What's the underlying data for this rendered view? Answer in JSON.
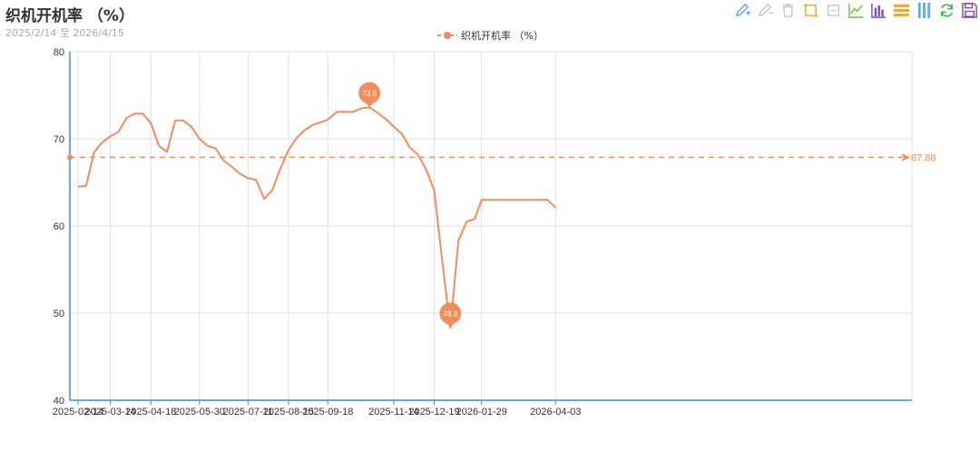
{
  "title": "织机开机率 （%）",
  "subtitle": "2025/2/14 至 2026/4/15",
  "legend": {
    "label": "织机开机率 （%）"
  },
  "toolbox": {
    "icons": [
      "mark-pen-icon",
      "erase-icon",
      "clear-marks-icon",
      "zoom-icon",
      "zoom-reset-icon",
      "line-chart-icon",
      "bar-chart-icon",
      "stack-icon",
      "tiled-icon",
      "restore-icon",
      "save-image-icon"
    ],
    "colors": [
      "#5aaef1",
      "#c8c8c8",
      "#c8c8c8",
      "#f5a623",
      "#c8c8c8",
      "#67c23a",
      "#7b4bc4",
      "#f5a623",
      "#5aaef1",
      "#4caf50",
      "#7b4bc4"
    ]
  },
  "colors": {
    "series": "#f48c5b",
    "axis": "#3f8fd0",
    "grid": "#e0e0e0",
    "mark_text": "#ffffff"
  },
  "chart_data": {
    "type": "line",
    "x_ticks": [
      "2025-02-14",
      "2025-03-14",
      "2025-04-18",
      "2025-05-30",
      "2025-07-11",
      "2025-08-15",
      "2025-09-18",
      "2025-11-14",
      "2025-12-19",
      "2026-01-29",
      "2026-04-03"
    ],
    "y_ticks": [
      "40",
      "50",
      "60",
      "70",
      "80"
    ],
    "ylim": [
      40,
      80
    ],
    "grid": true,
    "legend_position": "top-center",
    "series": [
      {
        "name": "织机开机率 （%）",
        "points": [
          [
            "2025-02-14",
            64.5
          ],
          [
            "2025-02-21",
            64.6
          ],
          [
            "2025-02-28",
            68.5
          ],
          [
            "2025-03-07",
            69.6
          ],
          [
            "2025-03-14",
            70.3
          ],
          [
            "2025-03-21",
            70.8
          ],
          [
            "2025-03-28",
            72.4
          ],
          [
            "2025-04-04",
            72.9
          ],
          [
            "2025-04-11",
            72.9
          ],
          [
            "2025-04-18",
            71.8
          ],
          [
            "2025-04-25",
            69.2
          ],
          [
            "2025-05-02",
            68.5
          ],
          [
            "2025-05-09",
            72.1
          ],
          [
            "2025-05-16",
            72.1
          ],
          [
            "2025-05-23",
            71.4
          ],
          [
            "2025-05-30",
            70.0
          ],
          [
            "2025-06-06",
            69.2
          ],
          [
            "2025-06-13",
            68.9
          ],
          [
            "2025-06-20",
            67.5
          ],
          [
            "2025-06-27",
            66.8
          ],
          [
            "2025-07-04",
            66.0
          ],
          [
            "2025-07-11",
            65.5
          ],
          [
            "2025-07-18",
            65.3
          ],
          [
            "2025-07-25",
            63.1
          ],
          [
            "2025-08-01",
            64.1
          ],
          [
            "2025-08-08",
            66.6
          ],
          [
            "2025-08-15",
            68.7
          ],
          [
            "2025-08-22",
            70.1
          ],
          [
            "2025-08-29",
            71.0
          ],
          [
            "2025-09-05",
            71.6
          ],
          [
            "2025-09-12",
            71.9
          ],
          [
            "2025-09-18",
            72.2
          ],
          [
            "2025-09-26",
            73.1
          ],
          [
            "2025-10-10",
            73.1
          ],
          [
            "2025-10-17",
            73.5
          ],
          [
            "2025-10-24",
            73.6
          ],
          [
            "2025-10-31",
            73.0
          ],
          [
            "2025-11-07",
            72.3
          ],
          [
            "2025-11-14",
            71.4
          ],
          [
            "2025-11-21",
            70.6
          ],
          [
            "2025-11-28",
            69.0
          ],
          [
            "2025-12-05",
            68.2
          ],
          [
            "2025-12-12",
            66.5
          ],
          [
            "2025-12-19",
            64.1
          ],
          [
            "2025-12-26",
            56.0
          ],
          [
            "2026-01-02",
            48.3
          ],
          [
            "2026-01-09",
            58.3
          ],
          [
            "2026-01-16",
            60.5
          ],
          [
            "2026-01-23",
            60.8
          ],
          [
            "2026-01-29",
            63.0
          ],
          [
            "2026-03-27",
            63.0
          ],
          [
            "2026-04-03",
            62.1
          ]
        ]
      }
    ],
    "mark_points": [
      {
        "type": "max",
        "label": "73.6",
        "x": "2025-10-24",
        "y": 73.6
      },
      {
        "type": "min",
        "label": "48.3",
        "x": "2026-01-02",
        "y": 48.3
      }
    ],
    "mark_line": {
      "type": "average",
      "label": "67.88",
      "value": 67.88
    }
  }
}
